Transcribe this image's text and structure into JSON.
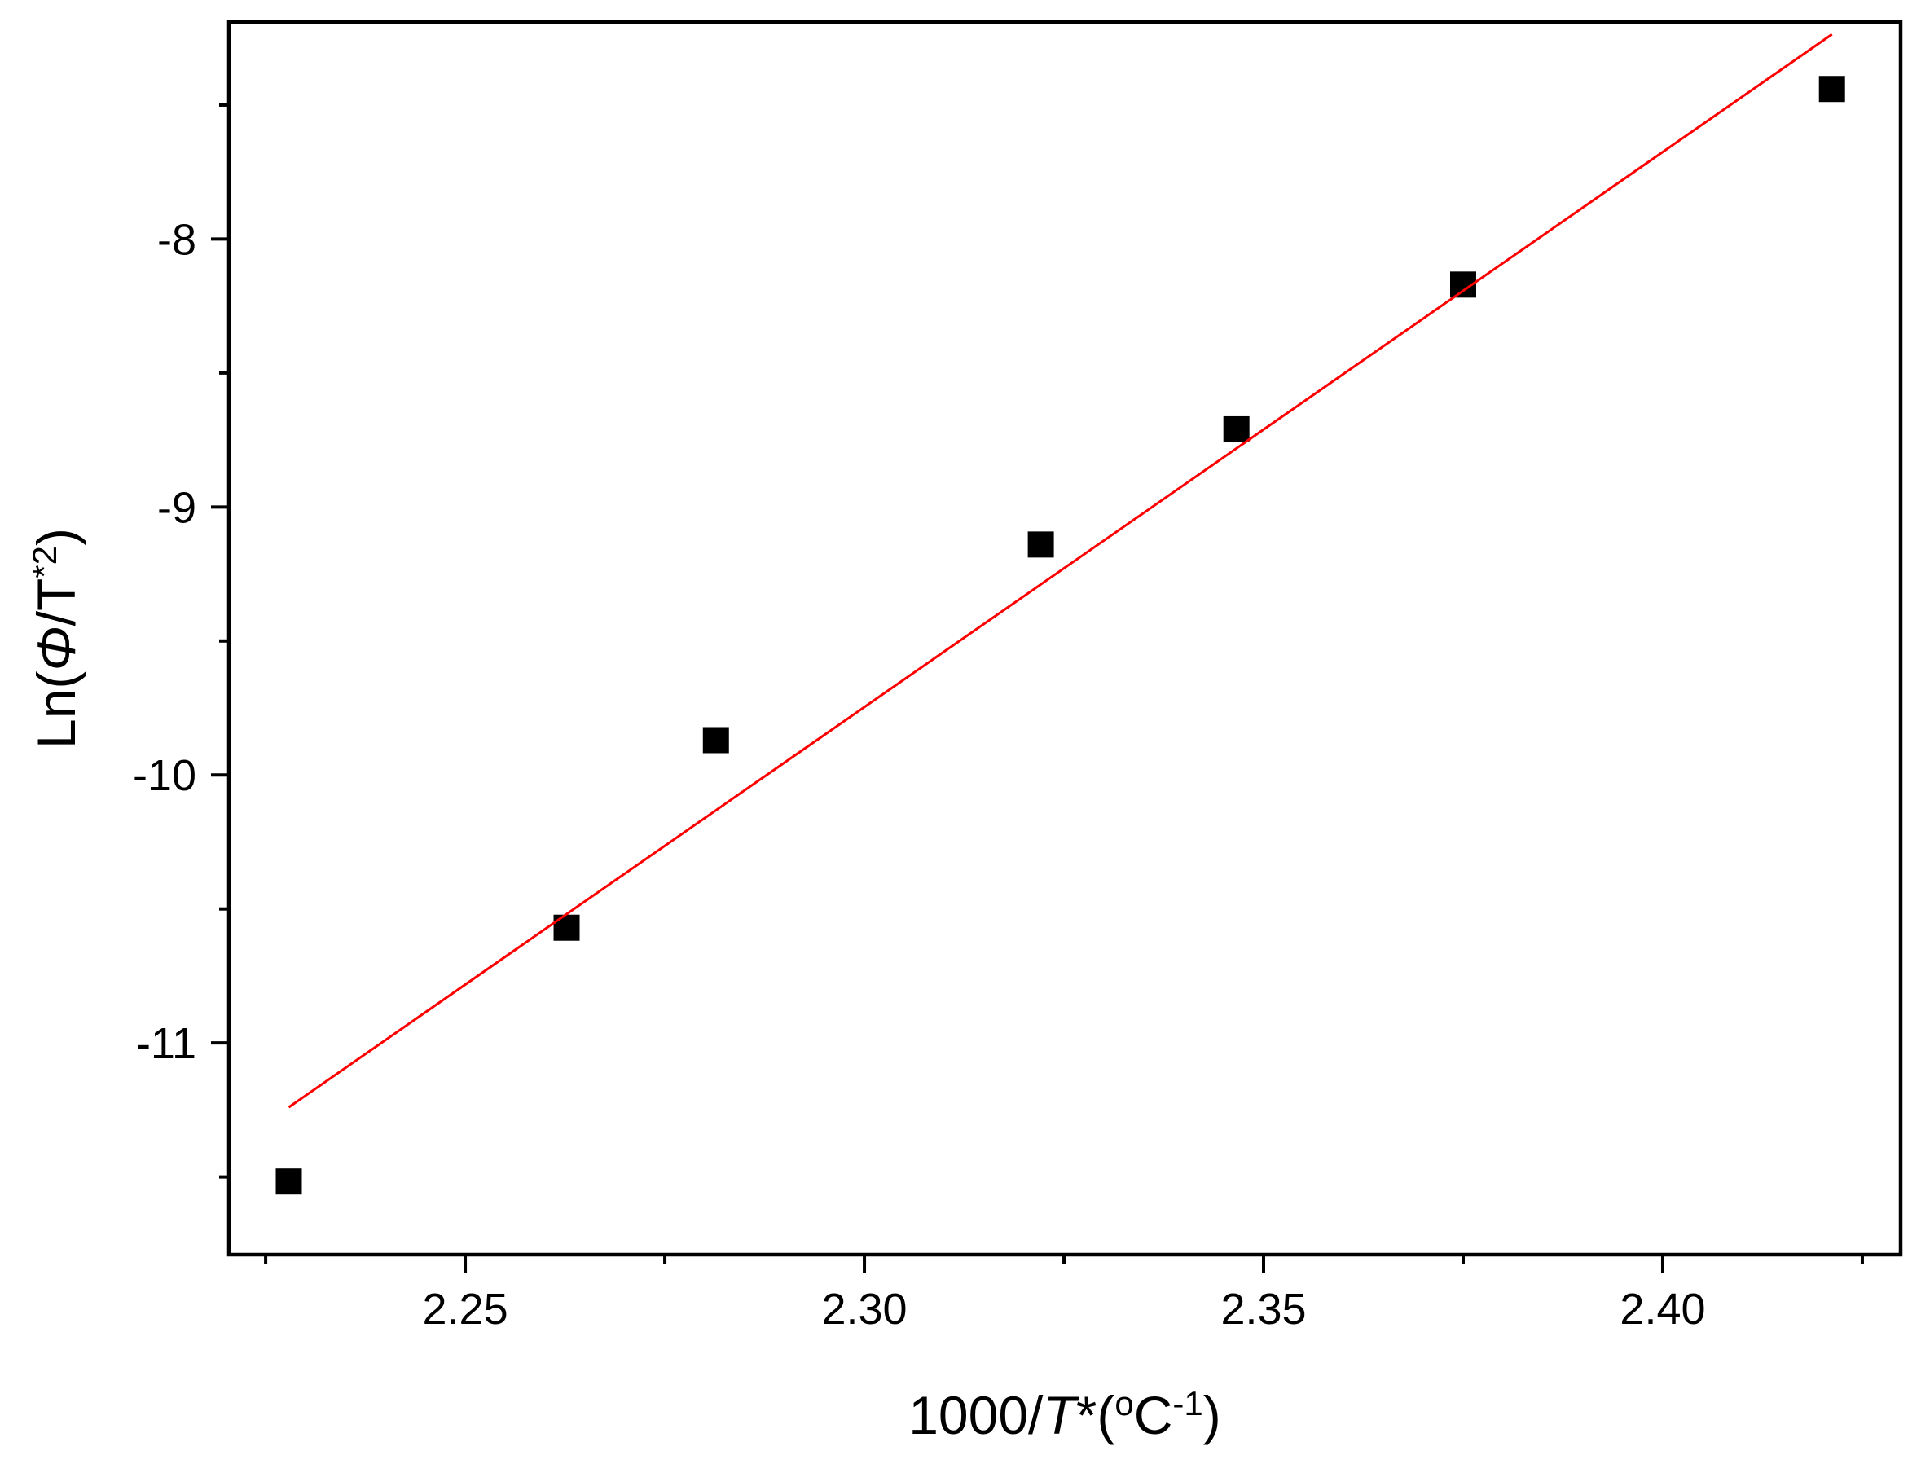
{
  "chart_data": {
    "type": "scatter",
    "xlabel": [
      "1000/",
      "T",
      "*(",
      "o",
      "C",
      "-1",
      ")"
    ],
    "ylabel": [
      "Ln(",
      "Φ",
      "/T",
      "*2",
      ")"
    ],
    "xlim": [
      2.2204,
      2.4298
    ],
    "ylim": [
      -11.79,
      -7.19
    ],
    "xticks": [
      {
        "value": 2.25,
        "label": "2.25"
      },
      {
        "value": 2.3,
        "label": "2.30"
      },
      {
        "value": 2.35,
        "label": "2.35"
      },
      {
        "value": 2.4,
        "label": "2.40"
      }
    ],
    "xminor_ticks": [
      2.225,
      2.275,
      2.325,
      2.375,
      2.425
    ],
    "yticks": [
      -8,
      -9,
      -10,
      -11
    ],
    "yminor_ticks": [
      -7.5,
      -8.5,
      -9.5,
      -10.5,
      -11.5
    ],
    "series": [
      {
        "type": "scatter",
        "color": "#000000",
        "x": [
          2.2279,
          2.2627,
          2.2814,
          2.3221,
          2.3466,
          2.375,
          2.4212
        ],
        "values": [
          -11.517,
          -10.57,
          -9.87,
          -9.14,
          -8.71,
          -8.17,
          -7.44
        ]
      },
      {
        "type": "line",
        "color": "#ff0000",
        "x": [
          2.2279,
          2.4212
        ],
        "values": [
          -11.24,
          -7.236
        ]
      }
    ]
  }
}
